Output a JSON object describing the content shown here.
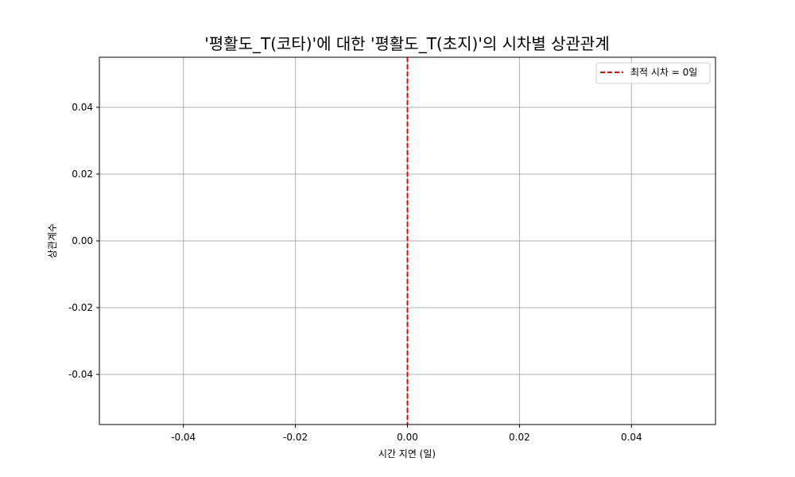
{
  "chart_data": {
    "type": "line",
    "title": "'평활도_T(코타)'에 대한 '평활도_T(초지)'의 시차별 상관관계",
    "xlabel": "시간 지연 (일)",
    "ylabel": "상관계수",
    "xlim": [
      -0.055,
      0.055
    ],
    "ylim": [
      -0.055,
      0.055
    ],
    "x_ticks": [
      -0.04,
      -0.02,
      0.0,
      0.02,
      0.04
    ],
    "x_tick_labels": [
      "-0.04",
      "-0.02",
      "0.00",
      "0.02",
      "0.04"
    ],
    "y_ticks": [
      0.04,
      0.02,
      0.0,
      -0.02,
      -0.04
    ],
    "y_tick_labels": [
      "0.04",
      "0.02",
      "0.00",
      "-0.02",
      "-0.04"
    ],
    "grid": true,
    "series": [],
    "reference_lines": [
      {
        "orientation": "vertical",
        "x": 0,
        "style": "dashed",
        "color": "#ff0000",
        "label": "최적 시차 = 0일"
      }
    ],
    "legend_placement": "top-right"
  },
  "colors": {
    "grid": "#b0b0b0",
    "frame": "#000000",
    "optimal_lag_line": "#ff0000"
  }
}
